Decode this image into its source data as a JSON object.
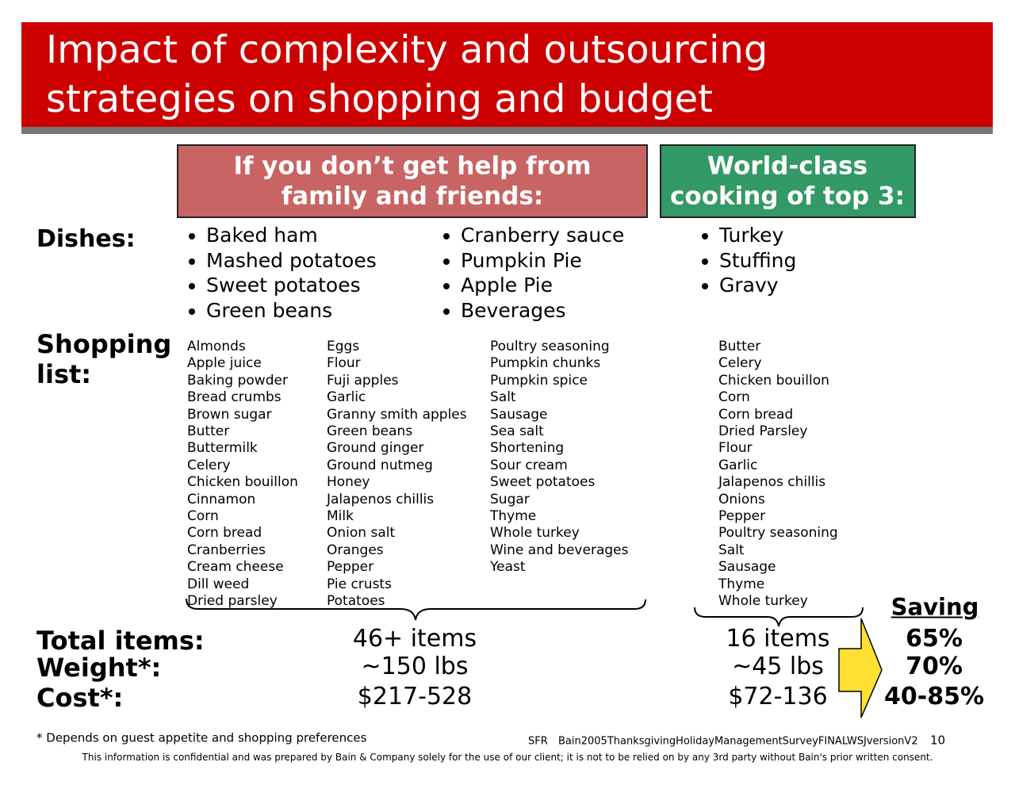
{
  "header": {
    "title_lines": [
      "Impact of complexity and outsourcing",
      "strategies on shopping and budget"
    ]
  },
  "columns": {
    "left": {
      "heading_lines": [
        "If you don’t get help from",
        "family and friends:"
      ]
    },
    "right": {
      "heading_lines": [
        "World-class",
        "cooking of top 3:"
      ]
    }
  },
  "row_labels": {
    "dishes": "Dishes:",
    "shopping_lines": [
      "Shopping",
      "list:"
    ],
    "total": "Total items:",
    "weight": "Weight*:",
    "cost": "Cost*:"
  },
  "dishes": {
    "left_a": [
      "Baked ham",
      "Mashed potatoes",
      "Sweet potatoes",
      "Green beans"
    ],
    "left_b": [
      "Cranberry sauce",
      "Pumpkin Pie",
      "Apple Pie",
      "Beverages"
    ],
    "right": [
      "Turkey",
      "Stuffing",
      "Gravy"
    ]
  },
  "shopping_list": {
    "col1": [
      "Almonds",
      "Apple juice",
      "Baking powder",
      "Bread crumbs",
      "Brown sugar",
      "Butter",
      "Buttermilk",
      "Celery",
      "Chicken bouillon",
      "Cinnamon",
      "Corn",
      "Corn bread",
      "Cranberries",
      "Cream cheese",
      "Dill weed",
      "Dried parsley"
    ],
    "col2": [
      "Eggs",
      "Flour",
      "Fuji apples",
      "Garlic",
      "Granny smith apples",
      "Green beans",
      "Ground ginger",
      "Ground nutmeg",
      "Honey",
      "Jalapenos chillis",
      "Milk",
      "Onion salt",
      "Oranges",
      "Pepper",
      "Pie crusts",
      "Potatoes"
    ],
    "col3": [
      "Poultry seasoning",
      "Pumpkin chunks",
      "Pumpkin spice",
      "Salt",
      "Sausage",
      "Sea salt",
      "Shortening",
      "Sour cream",
      "Sweet potatoes",
      "Sugar",
      "Thyme",
      "Whole turkey",
      "Wine and beverages",
      "Yeast"
    ],
    "col4": [
      "Butter",
      "Celery",
      "Chicken bouillon",
      "Corn",
      "Corn bread",
      "Dried Parsley",
      "Flour",
      "Garlic",
      "Jalapenos chillis",
      "Onions",
      "Pepper",
      "Poultry seasoning",
      "Salt",
      "Sausage",
      "Thyme",
      "Whole turkey"
    ]
  },
  "totals": {
    "left": [
      "46+ items",
      "~150 lbs",
      "$217-528"
    ],
    "right": [
      "16 items",
      "~45 lbs",
      "$72-136"
    ]
  },
  "saving": {
    "label": "Saving",
    "values": [
      "65%",
      "70%",
      "40-85%"
    ]
  },
  "footnote": "* Depends on guest appetite and shopping preferences",
  "source": "SFR",
  "file": "Bain2005ThanksgivingHolidayManagementSurveyFINALWSJversionV2",
  "page": "10",
  "confidential": "This information is confidential and was prepared by Bain & Company solely for the use of our client; it is not to be relied on by any 3rd party without Bain's prior written consent."
}
